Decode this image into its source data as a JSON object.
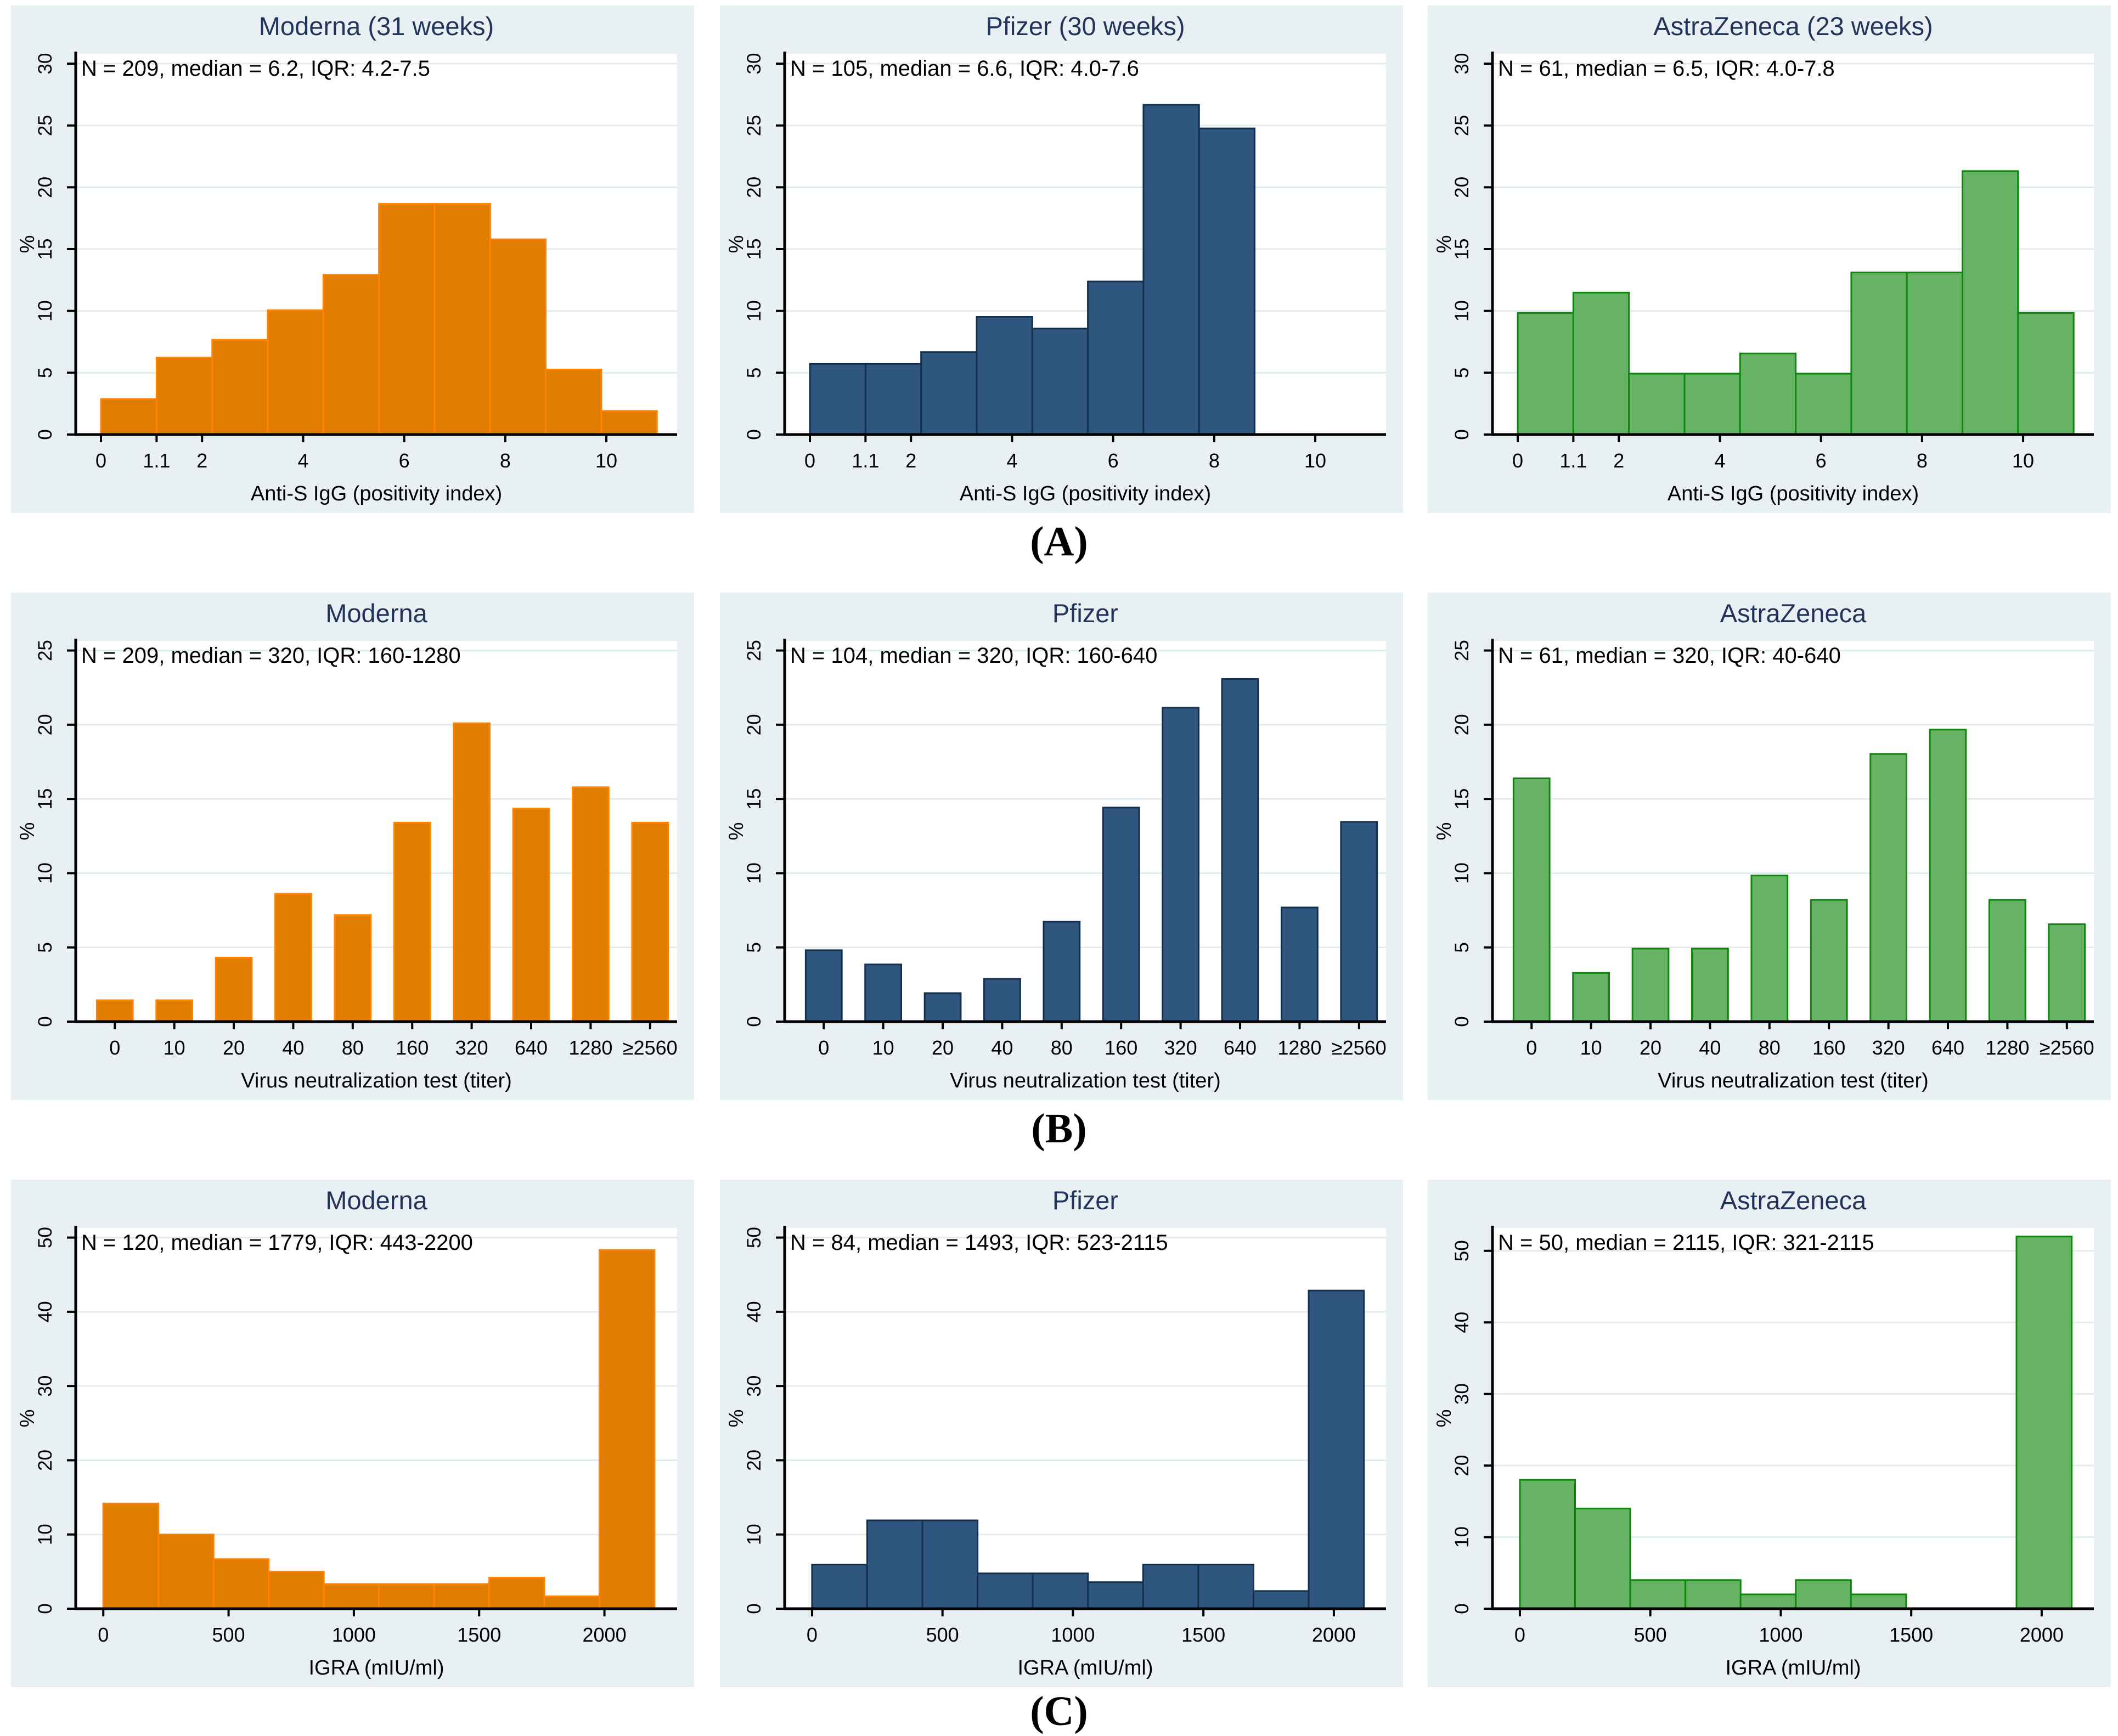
{
  "figure": {
    "row_labels": [
      "(A)",
      "(B)",
      "(C)"
    ]
  },
  "colors": {
    "page_bg": "#ffffff",
    "panel_bg": "#E9F0F4",
    "plot_bg": "#ffffff",
    "grid": "#E1ECF0",
    "axis": "#000000",
    "title": "#23345A",
    "text": "#000000",
    "orange_fill": "#E07D00",
    "orange_stroke": "#FF8300",
    "navy_fill": "#2F567E",
    "navy_stroke": "#14304F",
    "green_fill": "#66B366",
    "green_stroke": "#0E860E"
  },
  "chart_data": [
    {
      "panel_id": "a-moderna",
      "type": "histogram",
      "row": 0,
      "col": 0,
      "color": "orange",
      "title": "Moderna (31 weeks)",
      "stats": "N = 209, median = 6.2, IQR: 4.2-7.5",
      "ylabel": "%",
      "xlabel": "Anti-S IgG (positivity index)",
      "yticks": [
        0,
        5,
        10,
        15,
        20,
        25,
        30
      ],
      "ymax": 30.8,
      "xmin": -0.5,
      "xmax": 11.4,
      "bin_start": 0,
      "bin_width": 1.1,
      "values": [
        2.87,
        6.22,
        7.66,
        10.05,
        12.92,
        18.66,
        18.66,
        15.79,
        5.26,
        1.91
      ],
      "xticks": [
        0,
        1.1,
        2,
        4,
        6,
        8,
        10
      ],
      "xtick_labels": [
        "0",
        "1.1",
        "2",
        "4",
        "6",
        "8",
        "10"
      ]
    },
    {
      "panel_id": "a-pfizer",
      "type": "histogram",
      "row": 0,
      "col": 1,
      "color": "navy",
      "title": "Pfizer (30 weeks)",
      "stats": "N = 105, median = 6.6, IQR: 4.0-7.6",
      "ylabel": "%",
      "xlabel": "Anti-S IgG (positivity index)",
      "yticks": [
        0,
        5,
        10,
        15,
        20,
        25,
        30
      ],
      "ymax": 30.8,
      "xmin": -0.5,
      "xmax": 11.4,
      "bin_start": 0,
      "bin_width": 1.1,
      "values": [
        5.71,
        5.71,
        6.67,
        9.52,
        8.57,
        12.38,
        26.67,
        24.76
      ],
      "xticks": [
        0,
        1.1,
        2,
        4,
        6,
        8,
        10
      ],
      "xtick_labels": [
        "0",
        "1.1",
        "2",
        "4",
        "6",
        "8",
        "10"
      ]
    },
    {
      "panel_id": "a-astrazeneca",
      "type": "histogram",
      "row": 0,
      "col": 2,
      "color": "green",
      "title": "AstraZeneca (23 weeks)",
      "stats": "N = 61, median = 6.5, IQR: 4.0-7.8",
      "ylabel": "%",
      "xlabel": "Anti-S IgG (positivity index)",
      "yticks": [
        0,
        5,
        10,
        15,
        20,
        25,
        30
      ],
      "ymax": 30.8,
      "xmin": -0.5,
      "xmax": 11.4,
      "bin_start": 0,
      "bin_width": 1.1,
      "values": [
        9.84,
        11.48,
        4.92,
        4.92,
        6.56,
        4.92,
        13.11,
        13.11,
        21.31,
        9.84
      ],
      "xticks": [
        0,
        1.1,
        2,
        4,
        6,
        8,
        10
      ],
      "xtick_labels": [
        "0",
        "1.1",
        "2",
        "4",
        "6",
        "8",
        "10"
      ]
    },
    {
      "panel_id": "b-moderna",
      "type": "bar",
      "row": 1,
      "col": 0,
      "color": "orange",
      "title": "Moderna",
      "stats": "N = 209, median = 320, IQR: 160-1280",
      "ylabel": "%",
      "xlabel": "Virus neutralization test  (titer)",
      "yticks": [
        0,
        5,
        10,
        15,
        20,
        25
      ],
      "ymax": 25.65,
      "categories": [
        "0",
        "10",
        "20",
        "40",
        "80",
        "160",
        "320",
        "640",
        "1280",
        "≥2560"
      ],
      "values": [
        1.44,
        1.44,
        4.31,
        8.61,
        7.18,
        13.4,
        20.1,
        14.35,
        15.79,
        13.4
      ]
    },
    {
      "panel_id": "b-pfizer",
      "type": "bar",
      "row": 1,
      "col": 1,
      "color": "navy",
      "title": "Pfizer",
      "stats": "N =  104, median = 320, IQR: 160-640",
      "ylabel": "%",
      "xlabel": "Virus neutralization test (titer)",
      "yticks": [
        0,
        5,
        10,
        15,
        20,
        25
      ],
      "ymax": 25.65,
      "categories": [
        "0",
        "10",
        "20",
        "40",
        "80",
        "160",
        "320",
        "640",
        "1280",
        "≥2560"
      ],
      "values": [
        4.81,
        3.85,
        1.92,
        2.88,
        6.73,
        14.42,
        21.15,
        23.08,
        7.69,
        13.46
      ]
    },
    {
      "panel_id": "b-astrazeneca",
      "type": "bar",
      "row": 1,
      "col": 2,
      "color": "green",
      "title": "AstraZeneca",
      "stats": "N = 61, median = 320, IQR: 40-640",
      "ylabel": "%",
      "xlabel": "Virus neutralization test (titer)",
      "yticks": [
        0,
        5,
        10,
        15,
        20,
        25
      ],
      "ymax": 25.65,
      "categories": [
        "0",
        "10",
        "20",
        "40",
        "80",
        "160",
        "320",
        "640",
        "1280",
        "≥2560"
      ],
      "values": [
        16.39,
        3.28,
        4.92,
        4.92,
        9.84,
        8.2,
        18.03,
        19.67,
        8.2,
        6.56
      ]
    },
    {
      "panel_id": "c-moderna",
      "type": "histogram",
      "row": 2,
      "col": 0,
      "color": "orange",
      "title": "Moderna",
      "stats": "N = 120, median = 1779, IQR: 443-2200",
      "ylabel": "%",
      "xlabel": "IGRA (mIU/ml)",
      "yticks": [
        0,
        10,
        20,
        30,
        40,
        50
      ],
      "ymax": 51.3,
      "xmin": -110,
      "xmax": 2290,
      "bin_start": 0,
      "bin_width": 220,
      "values": [
        14.17,
        10.0,
        6.67,
        5.0,
        3.33,
        3.33,
        3.33,
        4.17,
        1.67,
        48.33
      ],
      "xticks": [
        0,
        500,
        1000,
        1500,
        2000
      ],
      "xtick_labels": [
        "0",
        "500",
        "1000",
        "1500",
        "2000"
      ]
    },
    {
      "panel_id": "c-pfizer",
      "type": "histogram",
      "row": 2,
      "col": 1,
      "color": "navy",
      "title": "Pfizer",
      "stats": "N = 84, median = 1493, IQR: 523-2115",
      "ylabel": "%",
      "xlabel": "IGRA (mIU/ml)",
      "yticks": [
        0,
        10,
        20,
        30,
        40,
        50
      ],
      "ymax": 51.3,
      "xmin": -105,
      "xmax": 2200,
      "bin_start": 0,
      "bin_width": 211.5,
      "values": [
        5.95,
        11.9,
        11.9,
        4.76,
        4.76,
        3.57,
        5.95,
        5.95,
        2.38,
        42.86
      ],
      "xticks": [
        0,
        500,
        1000,
        1500,
        2000
      ],
      "xtick_labels": [
        "0",
        "500",
        "1000",
        "1500",
        "2000"
      ]
    },
    {
      "panel_id": "c-astrazeneca",
      "type": "histogram",
      "row": 2,
      "col": 2,
      "color": "green",
      "title": "AstraZeneca",
      "stats": "N = 50, median = 2115, IQR:  321-2115",
      "ylabel": "%",
      "xlabel": "IGRA (mIU/ml)",
      "yticks": [
        0,
        10,
        20,
        30,
        40,
        50
      ],
      "ymax": 53.2,
      "xmin": -105,
      "xmax": 2200,
      "bin_start": 0,
      "bin_width": 211.5,
      "values": [
        18.0,
        14.0,
        4.0,
        4.0,
        2.0,
        4.0,
        2.0,
        0,
        0,
        52.0
      ],
      "xticks": [
        0,
        500,
        1000,
        1500,
        2000
      ],
      "xtick_labels": [
        "0",
        "500",
        "1000",
        "1500",
        "2000"
      ]
    }
  ]
}
